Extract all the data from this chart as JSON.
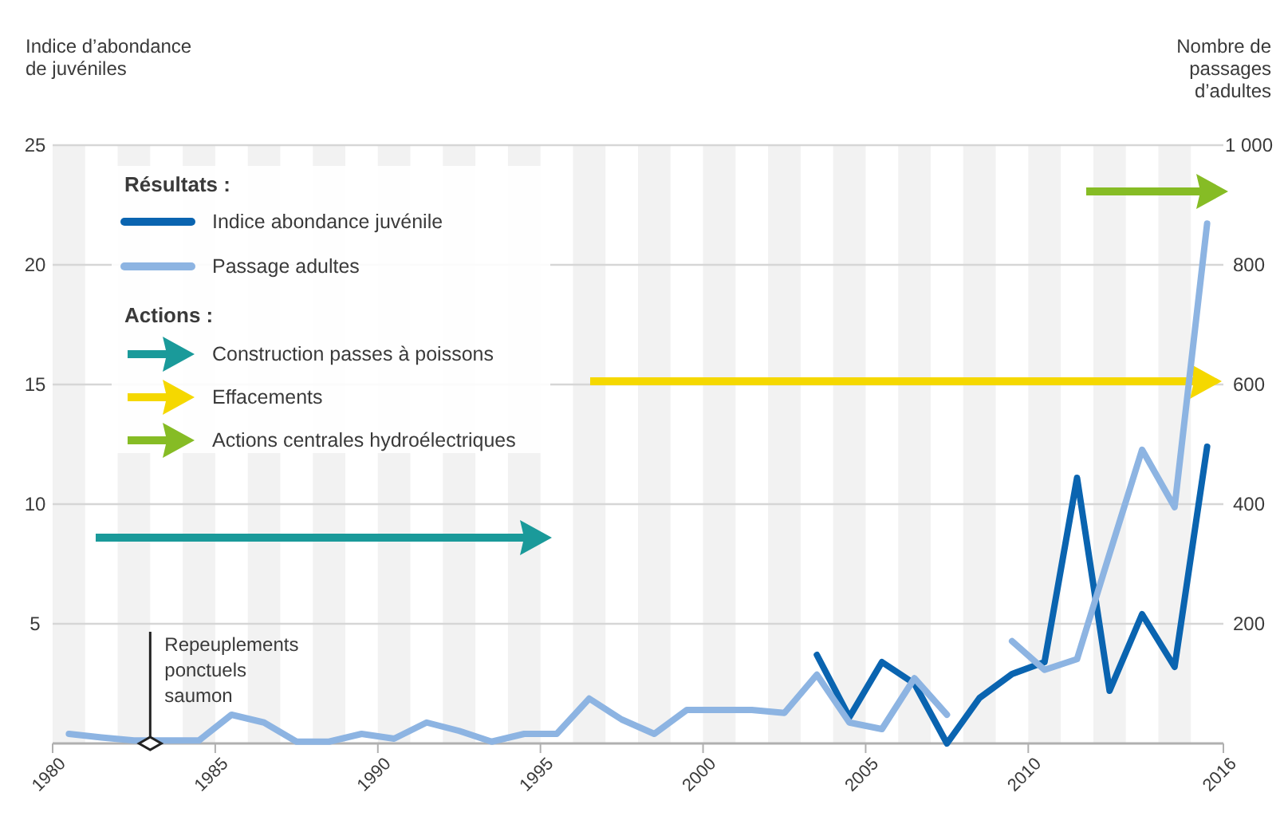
{
  "chart_data": {
    "type": "line",
    "ylabel": "Indice d’abondance de juvéniles",
    "y2label": "Nombre de passages d’adultes",
    "legend_title": "Résultats :",
    "x": [
      1980.5,
      1981.5,
      1982.5,
      1983.5,
      1984.5,
      1985.5,
      1986.5,
      1987.5,
      1988.5,
      1989.5,
      1990.5,
      1991.5,
      1992.5,
      1993.5,
      1994.5,
      1995.5,
      1996.5,
      1997.5,
      1998.5,
      1999.5,
      2000.5,
      2001.5,
      2002.5,
      2003.5,
      2004.5,
      2005.5,
      2006.5,
      2007.5,
      2008.5,
      2009.5,
      2010.5,
      2011.5,
      2012.5,
      2013.5,
      2014.5,
      2015.5
    ],
    "series": [
      {
        "name": "Indice abondance juvénile",
        "color": "#0a64b0",
        "values": [
          null,
          null,
          null,
          null,
          null,
          null,
          null,
          null,
          null,
          null,
          null,
          null,
          null,
          null,
          null,
          null,
          null,
          null,
          null,
          null,
          null,
          null,
          null,
          3.7,
          1.1,
          3.4,
          2.5,
          0,
          1.9,
          2.9,
          3.4,
          11.1,
          2.2,
          5.4,
          3.2,
          12.4
        ]
      },
      {
        "name": "Passage adultes",
        "color": "#8db4e2",
        "axis": "y2",
        "values": [
          16,
          10,
          5,
          5,
          5,
          48,
          35,
          3,
          3,
          16,
          8,
          35,
          21,
          3,
          16,
          16,
          75,
          40,
          16,
          56,
          56,
          56,
          51,
          115,
          35,
          24,
          109,
          48,
          null,
          171,
          123,
          141,
          317,
          491,
          395,
          869
        ]
      }
    ],
    "xlim": [
      1980,
      2016
    ],
    "xticks": [
      1980,
      1985,
      1990,
      1995,
      2000,
      2005,
      2010,
      2016
    ],
    "ylim": [
      0,
      25
    ],
    "yticks": [
      5,
      10,
      15,
      20,
      25
    ],
    "y2lim": [
      0,
      1000
    ],
    "y2ticks": [
      200,
      400,
      600,
      800,
      {
        "value": 1000,
        "label": "1 000"
      }
    ],
    "grid": "y",
    "legend": "top left",
    "marker": "none",
    "line_style": "solid",
    "bands": [
      {
        "axis": "x",
        "from": 1980,
        "to": 1981,
        "color": "#f2f2f2"
      },
      {
        "axis": "x",
        "from": 1982,
        "to": 1983,
        "color": "#f2f2f2"
      },
      {
        "axis": "x",
        "from": 1984,
        "to": 1985,
        "color": "#f2f2f2"
      },
      {
        "axis": "x",
        "from": 1986,
        "to": 1987,
        "color": "#f2f2f2"
      },
      {
        "axis": "x",
        "from": 1988,
        "to": 1989,
        "color": "#f2f2f2"
      },
      {
        "axis": "x",
        "from": 1990,
        "to": 1991,
        "color": "#f2f2f2"
      },
      {
        "axis": "x",
        "from": 1992,
        "to": 1993,
        "color": "#f2f2f2"
      },
      {
        "axis": "x",
        "from": 1994,
        "to": 1995,
        "color": "#f2f2f2"
      },
      {
        "axis": "x",
        "from": 1996,
        "to": 1997,
        "color": "#f2f2f2"
      },
      {
        "axis": "x",
        "from": 1998,
        "to": 1999,
        "color": "#f2f2f2"
      },
      {
        "axis": "x",
        "from": 2000,
        "to": 2001,
        "color": "#f2f2f2"
      },
      {
        "axis": "x",
        "from": 2002,
        "to": 2003,
        "color": "#f2f2f2"
      },
      {
        "axis": "x",
        "from": 2004,
        "to": 2005,
        "color": "#f2f2f2"
      },
      {
        "axis": "x",
        "from": 2006,
        "to": 2007,
        "color": "#f2f2f2"
      },
      {
        "axis": "x",
        "from": 2008,
        "to": 2009,
        "color": "#f2f2f2"
      },
      {
        "axis": "x",
        "from": 2010,
        "to": 2011,
        "color": "#f2f2f2"
      },
      {
        "axis": "x",
        "from": 2012,
        "to": 2013,
        "color": "#f2f2f2"
      },
      {
        "axis": "x",
        "from": 2014,
        "to": 2015,
        "color": "#f2f2f2"
      }
    ],
    "annotations": [
      "Actions :",
      "Construction passes à poissons",
      "Effacements",
      "Actions centrales hydroélectriques",
      {
        "text": "Repeuplements ponctuels saumon",
        "x": 1983,
        "y": 0
      }
    ]
  }
}
